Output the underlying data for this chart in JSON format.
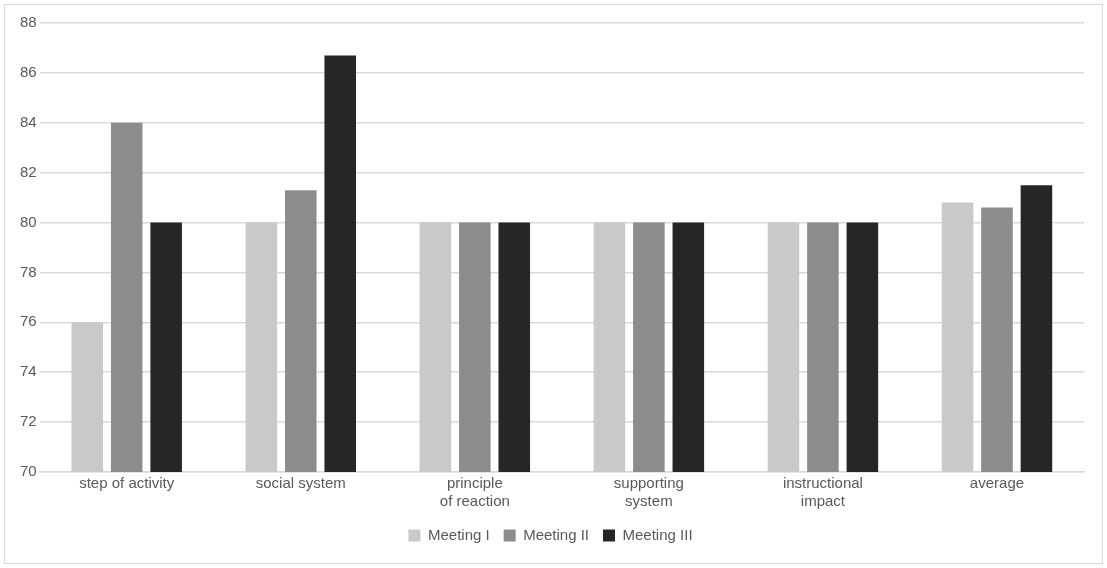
{
  "chart_data": {
    "type": "bar",
    "categories": [
      "step of activity",
      "social system",
      "principle of reaction",
      "supporting system",
      "instructional impact",
      "average"
    ],
    "series": [
      {
        "name": "Meeting I",
        "color": "#c9c9c9",
        "values": [
          76,
          80,
          80,
          80,
          80,
          80.8
        ]
      },
      {
        "name": "Meeting II",
        "color": "#8c8c8c",
        "values": [
          84,
          81.3,
          80,
          80,
          80,
          80.6
        ]
      },
      {
        "name": "Meeting III",
        "color": "#262626",
        "values": [
          80,
          86.7,
          80,
          80,
          80,
          81.5
        ]
      }
    ],
    "ylim": [
      70,
      88
    ],
    "yticks": [
      70,
      72,
      74,
      76,
      78,
      80,
      82,
      84,
      86,
      88
    ],
    "grid": "y",
    "legend": "bottom"
  }
}
